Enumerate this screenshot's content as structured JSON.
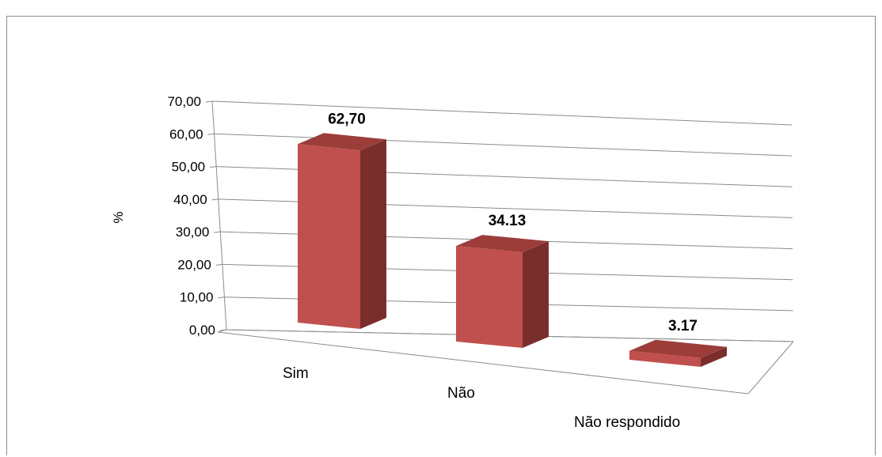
{
  "chart_data": {
    "type": "bar",
    "style": "3d",
    "categories": [
      "Sim",
      "Não",
      "Não respondido"
    ],
    "values": [
      62.7,
      34.13,
      3.17
    ],
    "data_labels": [
      "62,70",
      "34.13",
      "3.17"
    ],
    "ylabel": "%",
    "ylim": [
      0,
      70
    ],
    "yticks": [
      "0,00",
      "10,00",
      "20,00",
      "30,00",
      "40,00",
      "50,00",
      "60,00",
      "70,00"
    ],
    "grid": true,
    "legend": "none",
    "colors": {
      "front": "#c0504d",
      "side": "#7a2e2c",
      "top": "#9c3d3a",
      "grid": "#8c8c8c"
    }
  }
}
